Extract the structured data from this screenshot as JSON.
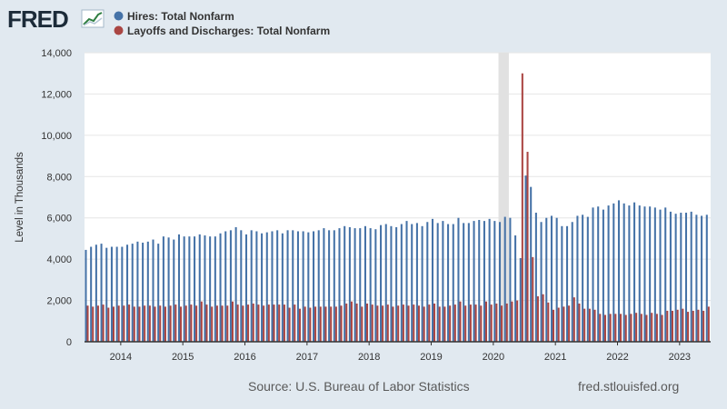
{
  "logo": {
    "text": "FRED"
  },
  "colors": {
    "background": "#e1e9f0",
    "plot_background": "#ffffff",
    "gridline": "#e6e6e6",
    "recession": "#e1e1e1"
  },
  "footer": {
    "source": "Source: U.S. Bureau of Labor Statistics",
    "site": "fred.stlouisfed.org"
  },
  "chart_data": {
    "type": "bar",
    "title": "",
    "xlabel": "",
    "ylabel": "Level in Thousands",
    "ylim": [
      0,
      14000
    ],
    "yticks": [
      0,
      2000,
      4000,
      6000,
      8000,
      10000,
      12000,
      14000
    ],
    "ytick_labels": [
      "0",
      "2,000",
      "4,000",
      "6,000",
      "8,000",
      "10,000",
      "12,000",
      "14,000"
    ],
    "xticks": [
      "2014",
      "2015",
      "2016",
      "2017",
      "2018",
      "2019",
      "2020",
      "2021",
      "2022",
      "2023"
    ],
    "x_start": "2013-06",
    "x_end": "2023-06",
    "grid": true,
    "legend_position": "top-left",
    "recession": {
      "start": "2020-02",
      "end": "2020-04"
    },
    "series": [
      {
        "name": "Hires: Total Nonfarm",
        "color": "#4572a7",
        "values": [
          4450,
          4600,
          4700,
          4750,
          4550,
          4600,
          4600,
          4600,
          4700,
          4750,
          4850,
          4800,
          4850,
          4950,
          4750,
          5100,
          5050,
          4950,
          5200,
          5100,
          5100,
          5100,
          5200,
          5150,
          5100,
          5100,
          5250,
          5350,
          5400,
          5550,
          5400,
          5200,
          5400,
          5350,
          5250,
          5300,
          5350,
          5400,
          5250,
          5400,
          5400,
          5350,
          5350,
          5300,
          5350,
          5400,
          5500,
          5400,
          5400,
          5500,
          5600,
          5550,
          5500,
          5500,
          5600,
          5500,
          5450,
          5650,
          5700,
          5600,
          5550,
          5700,
          5850,
          5700,
          5750,
          5600,
          5800,
          5950,
          5750,
          5850,
          5700,
          5700,
          6000,
          5750,
          5750,
          5850,
          5900,
          5850,
          5950,
          5850,
          5800,
          6050,
          6000,
          5150,
          4050,
          8050,
          7500,
          6250,
          5800,
          6000,
          6100,
          6000,
          5600,
          5600,
          5800,
          6100,
          6150,
          6050,
          6500,
          6550,
          6400,
          6600,
          6700,
          6850,
          6700,
          6600,
          6750,
          6600,
          6550,
          6550,
          6500,
          6400,
          6500,
          6300,
          6200,
          6250,
          6250,
          6300,
          6150,
          6100,
          6150,
          6250,
          5900
        ]
      },
      {
        "name": "Layoffs and Discharges: Total Nonfarm",
        "color": "#aa4643",
        "values": [
          1750,
          1700,
          1750,
          1800,
          1650,
          1700,
          1750,
          1750,
          1800,
          1700,
          1700,
          1750,
          1750,
          1700,
          1750,
          1700,
          1750,
          1800,
          1700,
          1750,
          1800,
          1750,
          1950,
          1800,
          1700,
          1750,
          1750,
          1750,
          1950,
          1800,
          1750,
          1800,
          1850,
          1800,
          1750,
          1800,
          1800,
          1800,
          1800,
          1650,
          1800,
          1600,
          1700,
          1650,
          1700,
          1700,
          1700,
          1700,
          1700,
          1750,
          1850,
          1950,
          1850,
          1700,
          1850,
          1800,
          1750,
          1750,
          1800,
          1700,
          1750,
          1800,
          1750,
          1800,
          1750,
          1700,
          1800,
          1850,
          1700,
          1700,
          1750,
          1800,
          1950,
          1750,
          1800,
          1800,
          1750,
          1950,
          1800,
          1850,
          1750,
          1850,
          1950,
          2000,
          13000,
          9200,
          4100,
          2200,
          2300,
          1900,
          1550,
          1650,
          1700,
          1750,
          2150,
          1850,
          1600,
          1600,
          1550,
          1350,
          1300,
          1350,
          1350,
          1350,
          1300,
          1350,
          1400,
          1350,
          1300,
          1400,
          1350,
          1300,
          1500,
          1500,
          1550,
          1600,
          1450,
          1500,
          1550,
          1500,
          1700,
          1600,
          1600,
          1550
        ]
      }
    ]
  }
}
